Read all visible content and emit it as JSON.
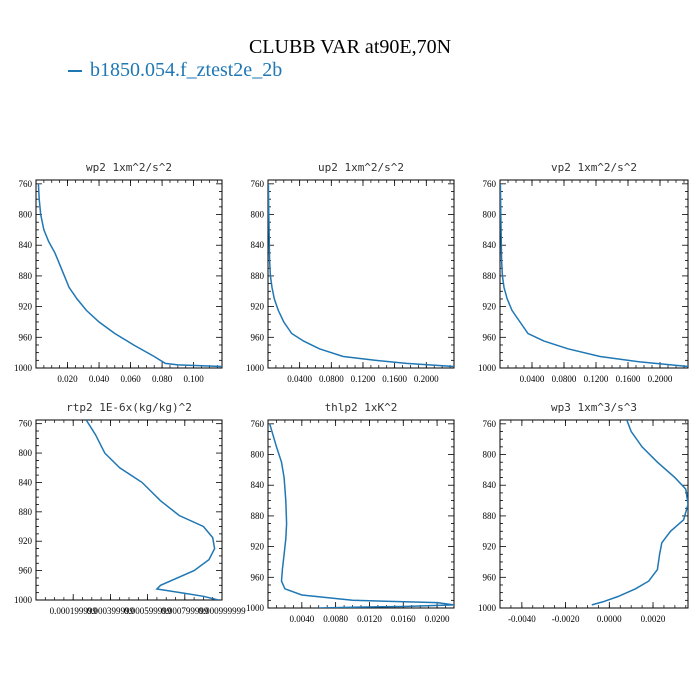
{
  "figure": {
    "title": "CLUBB VAR at90E,70N",
    "legend": [
      {
        "label": "b1850.054.f_ztest2e_2b",
        "color": "#1f77b4"
      }
    ]
  },
  "chart_data": [
    {
      "type": "line",
      "title": "wp2   1xm^2/s^2",
      "xlim": [
        0.0,
        0.118
      ],
      "ylim": [
        1000,
        755
      ],
      "xticks": [
        "0.020",
        "0.040",
        "0.060",
        "0.080",
        "0.100"
      ],
      "xtick_values": [
        0.02,
        0.04,
        0.06,
        0.08,
        0.1
      ],
      "yticks": [
        "760",
        "800",
        "840",
        "880",
        "920",
        "960",
        "1000"
      ],
      "series": [
        {
          "x": [
            0.0015,
            0.002,
            0.003,
            0.005,
            0.008,
            0.012,
            0.014,
            0.016,
            0.018,
            0.021,
            0.026,
            0.032,
            0.04,
            0.05,
            0.062,
            0.075,
            0.082,
            0.09,
            0.118
          ],
          "y": [
            760,
            780,
            800,
            820,
            835,
            850,
            860,
            870,
            880,
            895,
            910,
            925,
            940,
            955,
            970,
            985,
            994,
            996,
            998
          ]
        }
      ]
    },
    {
      "type": "line",
      "title": "up2   1xm^2/s^2",
      "xlim": [
        0.0,
        0.235
      ],
      "ylim": [
        1000,
        755
      ],
      "xticks": [
        "0.0400",
        "0.0800",
        "0.1200",
        "0.1600",
        "0.2000"
      ],
      "xtick_values": [
        0.04,
        0.08,
        0.12,
        0.16,
        0.2
      ],
      "yticks": [
        "760",
        "800",
        "840",
        "880",
        "920",
        "960",
        "1000"
      ],
      "series": [
        {
          "x": [
            0.0005,
            0.001,
            0.0015,
            0.002,
            0.003,
            0.005,
            0.008,
            0.013,
            0.02,
            0.03,
            0.045,
            0.065,
            0.095,
            0.135,
            0.175,
            0.235
          ],
          "y": [
            760,
            800,
            830,
            860,
            880,
            895,
            910,
            925,
            940,
            955,
            965,
            975,
            985,
            990,
            994,
            998
          ]
        }
      ]
    },
    {
      "type": "line",
      "title": "vp2   1xm^2/s^2",
      "xlim": [
        0.0,
        0.235
      ],
      "ylim": [
        1000,
        755
      ],
      "xticks": [
        "0.0400",
        "0.0800",
        "0.1200",
        "0.1600",
        "0.2000"
      ],
      "xtick_values": [
        0.04,
        0.08,
        0.12,
        0.16,
        0.2
      ],
      "yticks": [
        "760",
        "800",
        "840",
        "880",
        "920",
        "960",
        "1000"
      ],
      "series": [
        {
          "x": [
            0.0005,
            0.001,
            0.0015,
            0.002,
            0.003,
            0.005,
            0.009,
            0.015,
            0.025,
            0.035,
            0.055,
            0.085,
            0.125,
            0.175,
            0.235
          ],
          "y": [
            760,
            800,
            830,
            860,
            880,
            895,
            910,
            925,
            940,
            955,
            965,
            975,
            985,
            992,
            998
          ]
        }
      ]
    },
    {
      "type": "line",
      "title": "rtp2   1E-6x(kg/kg)^2",
      "xlim": [
        0.0,
        0.001
      ],
      "ylim": [
        1000,
        755
      ],
      "xticks": [
        "0.000199999",
        "0.000399999",
        "0.000599999",
        "0.000799999",
        "0.000999999"
      ],
      "xtick_values": [
        0.0002,
        0.0004,
        0.0006,
        0.0008,
        0.001
      ],
      "yticks": [
        "760",
        "800",
        "840",
        "880",
        "920",
        "960",
        "1000"
      ],
      "series": [
        {
          "x": [
            0.00027,
            0.00032,
            0.00037,
            0.00045,
            0.00057,
            0.00067,
            0.00077,
            0.0009,
            0.00095,
            0.00096,
            0.00093,
            0.00085,
            0.00067,
            0.00065,
            0.00078,
            0.0009,
            0.00098
          ],
          "y": [
            755,
            775,
            800,
            820,
            840,
            865,
            885,
            900,
            915,
            930,
            945,
            960,
            980,
            985,
            990,
            995,
            1000
          ]
        }
      ]
    },
    {
      "type": "line",
      "title": "thlp2   1xK^2",
      "xlim": [
        0.0,
        0.022
      ],
      "ylim": [
        1000,
        755
      ],
      "xticks": [
        "0.0040",
        "0.0080",
        "0.0120",
        "0.0160",
        "0.0200"
      ],
      "xtick_values": [
        0.004,
        0.008,
        0.012,
        0.016,
        0.02
      ],
      "yticks": [
        "760",
        "800",
        "840",
        "880",
        "920",
        "960",
        "1000"
      ],
      "series": [
        {
          "x": [
            0.0002,
            0.001,
            0.0016,
            0.0019,
            0.0021,
            0.0022,
            0.0021,
            0.0019,
            0.0017,
            0.0016,
            0.002,
            0.004,
            0.01,
            0.02,
            0.022,
            0.016,
            0.01,
            0.006
          ],
          "y": [
            760,
            790,
            810,
            830,
            860,
            890,
            910,
            930,
            950,
            965,
            975,
            983,
            990,
            993,
            996,
            998,
            999,
            1000
          ]
        }
      ]
    },
    {
      "type": "line",
      "title": "wp3   1xm^3/s^3",
      "xlim": [
        -0.005,
        0.0036
      ],
      "ylim": [
        1000,
        755
      ],
      "xticks": [
        "-0.0040",
        "-0.0020",
        "0.0000",
        "0.0020"
      ],
      "xtick_values": [
        -0.004,
        -0.002,
        0.0,
        0.002
      ],
      "yticks": [
        "760",
        "800",
        "840",
        "880",
        "920",
        "960",
        "1000"
      ],
      "series": [
        {
          "x": [
            0.0008,
            0.001,
            0.0015,
            0.0022,
            0.003,
            0.0035,
            0.0036,
            0.0034,
            0.0028,
            0.0024,
            0.0023,
            0.0022,
            0.0018,
            0.0012,
            0.0004,
            -0.0003,
            -0.0008
          ],
          "y": [
            755,
            770,
            790,
            810,
            830,
            845,
            865,
            885,
            900,
            915,
            930,
            950,
            965,
            975,
            985,
            992,
            996
          ]
        }
      ]
    }
  ]
}
